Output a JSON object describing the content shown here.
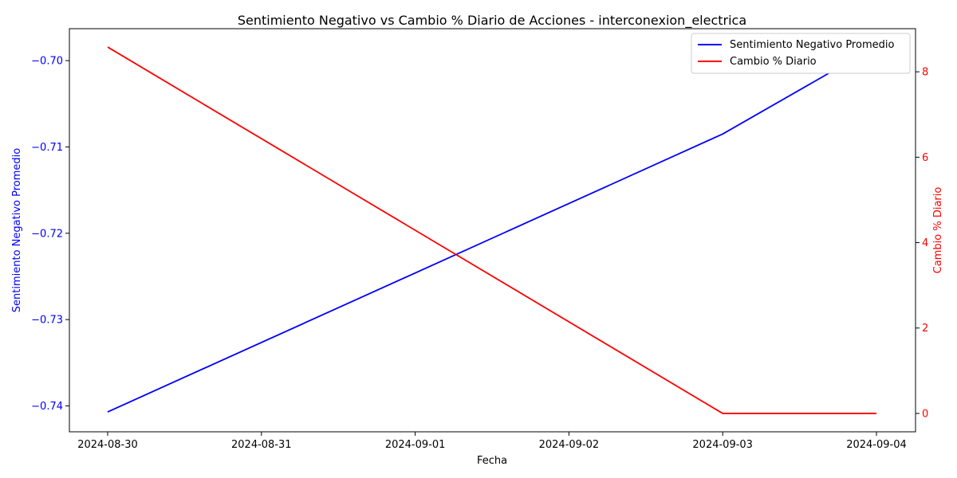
{
  "chart_data": {
    "type": "line",
    "title": "Sentimiento Negativo vs Cambio % Diario de Acciones - interconexion_electrica",
    "xlabel": "Fecha",
    "ylabel_left": "Sentimiento Negativo Promedio",
    "ylabel_right": "Cambio % Diario",
    "x": [
      "2024-08-30",
      "2024-08-31",
      "2024-09-01",
      "2024-09-02",
      "2024-09-03",
      "2024-09-04"
    ],
    "x_ticks": [
      "2024-08-30",
      "2024-08-31",
      "2024-09-01",
      "2024-09-02",
      "2024-09-03",
      "2024-09-04"
    ],
    "series": [
      {
        "name": "Sentimiento Negativo Promedio",
        "axis": "left",
        "color": "#0000ff",
        "x": [
          "2024-08-30",
          "2024-09-03",
          "2024-09-04"
        ],
        "values": [
          -0.7407,
          -0.7085,
          -0.6983
        ]
      },
      {
        "name": "Cambio % Diario",
        "axis": "right",
        "color": "#ff0000",
        "x": [
          "2024-08-30",
          "2024-09-03",
          "2024-09-04"
        ],
        "values": [
          8.58,
          0.0,
          0.0
        ]
      }
    ],
    "ylim_left": [
      -0.743,
      -0.6963
    ],
    "ylim_right": [
      -0.43,
      9.01
    ],
    "y_ticks_left": [
      -0.74,
      -0.73,
      -0.72,
      -0.71,
      -0.7
    ],
    "y_tick_labels_left": [
      "−0.74",
      "−0.73",
      "−0.72",
      "−0.71",
      "−0.70"
    ],
    "y_ticks_right": [
      0,
      2,
      4,
      6,
      8
    ],
    "y_tick_labels_right": [
      "0",
      "2",
      "4",
      "6",
      "8"
    ],
    "grid": false,
    "legend_position": "top-right"
  }
}
